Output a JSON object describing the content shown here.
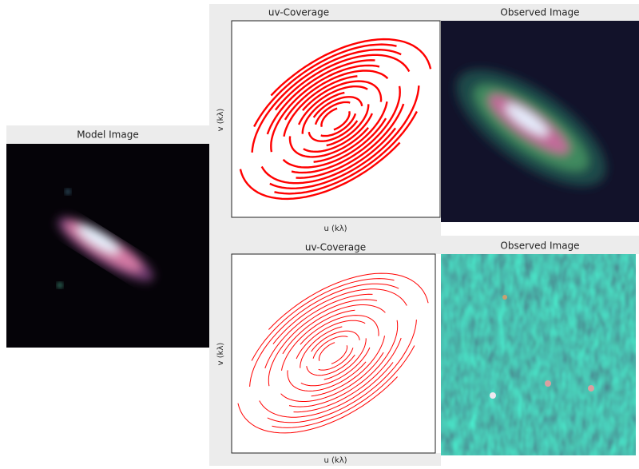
{
  "panels": [
    {
      "title": "Model Image"
    },
    {
      "title": "uv-Coverage",
      "xlabel": "u (kλ)",
      "ylabel": "v (kλ)"
    },
    {
      "title": "Observed Image"
    },
    {
      "title": "uv-Coverage",
      "xlabel": "u (kλ)",
      "ylabel": "v (kλ)"
    },
    {
      "title": "Observed Image"
    }
  ]
}
